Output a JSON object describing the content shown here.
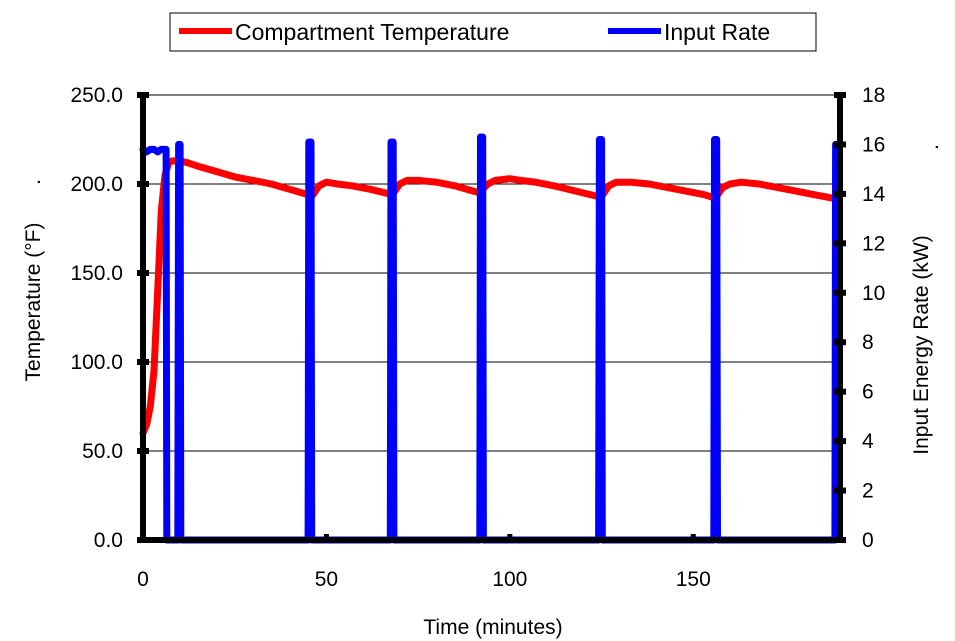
{
  "chart_data": {
    "type": "line",
    "x_axis": {
      "label": "Time (minutes)",
      "range": [
        0,
        190
      ],
      "ticks": [
        0,
        50,
        100,
        150
      ],
      "tick_labels": [
        "0",
        "50",
        "100",
        "150"
      ]
    },
    "y_axis_left": {
      "label": "Temperature (°F)",
      "suffix": ".",
      "range": [
        0,
        250
      ],
      "ticks": [
        0,
        50,
        100,
        150,
        200,
        250
      ],
      "tick_labels": [
        "0.0",
        "50.0",
        "100.0",
        "150.0",
        "200.0",
        "250.0"
      ]
    },
    "y_axis_right": {
      "label": "Input Energy Rate (kW)",
      "suffix": ".",
      "range": [
        0,
        18
      ],
      "ticks": [
        0,
        2,
        4,
        6,
        8,
        10,
        12,
        14,
        16,
        18
      ],
      "tick_labels": [
        "0",
        "2",
        "4",
        "6",
        "8",
        "10",
        "12",
        "14",
        "16",
        "18"
      ]
    },
    "grid": "horizontal",
    "legend_position": "top-center",
    "series": [
      {
        "name": "Compartment Temperature",
        "color": "#ff0000",
        "axis": "left",
        "points": [
          [
            0,
            60
          ],
          [
            1,
            65
          ],
          [
            2,
            75
          ],
          [
            3,
            95
          ],
          [
            4,
            140
          ],
          [
            5,
            185
          ],
          [
            6,
            205
          ],
          [
            7,
            212
          ],
          [
            8,
            213
          ],
          [
            10,
            213
          ],
          [
            12,
            212
          ],
          [
            15,
            210
          ],
          [
            20,
            207
          ],
          [
            25,
            204
          ],
          [
            30,
            202
          ],
          [
            35,
            200
          ],
          [
            40,
            197
          ],
          [
            45,
            194
          ],
          [
            46,
            193
          ],
          [
            47,
            196
          ],
          [
            48,
            199
          ],
          [
            50,
            201
          ],
          [
            53,
            200
          ],
          [
            57,
            199
          ],
          [
            62,
            197
          ],
          [
            66,
            195
          ],
          [
            68,
            194
          ],
          [
            69,
            197
          ],
          [
            70,
            200
          ],
          [
            72,
            202
          ],
          [
            75,
            202
          ],
          [
            80,
            201
          ],
          [
            85,
            199
          ],
          [
            90,
            196
          ],
          [
            92,
            195
          ],
          [
            93,
            198
          ],
          [
            94,
            200
          ],
          [
            96,
            202
          ],
          [
            100,
            203
          ],
          [
            103,
            202
          ],
          [
            107,
            201
          ],
          [
            112,
            199
          ],
          [
            118,
            196
          ],
          [
            124,
            193
          ],
          [
            125,
            193
          ],
          [
            126,
            196
          ],
          [
            127,
            199
          ],
          [
            129,
            201
          ],
          [
            133,
            201
          ],
          [
            138,
            200
          ],
          [
            143,
            198
          ],
          [
            148,
            196
          ],
          [
            153,
            194
          ],
          [
            156,
            192
          ],
          [
            157,
            195
          ],
          [
            158,
            198
          ],
          [
            160,
            200
          ],
          [
            163,
            201
          ],
          [
            168,
            200
          ],
          [
            173,
            198
          ],
          [
            178,
            196
          ],
          [
            183,
            194
          ],
          [
            188,
            192
          ],
          [
            189,
            191
          ]
        ]
      },
      {
        "name": "Input Rate",
        "color": "#0000ff",
        "axis": "right",
        "points": [
          [
            0,
            15.8
          ],
          [
            1,
            15.7
          ],
          [
            2,
            15.8
          ],
          [
            3,
            15.8
          ],
          [
            4,
            15.7
          ],
          [
            5,
            15.8
          ],
          [
            6,
            15.8
          ],
          [
            6.3,
            15.8
          ],
          [
            6.5,
            0
          ],
          [
            9.5,
            0
          ],
          [
            9.7,
            16.0
          ],
          [
            10.1,
            16.0
          ],
          [
            10.3,
            0
          ],
          [
            45,
            0
          ],
          [
            45.2,
            16.1
          ],
          [
            45.8,
            16.1
          ],
          [
            46,
            0
          ],
          [
            67.4,
            0
          ],
          [
            67.6,
            16.1
          ],
          [
            68.2,
            16.1
          ],
          [
            68.4,
            0
          ],
          [
            91.8,
            0
          ],
          [
            92,
            16.3
          ],
          [
            92.6,
            16.3
          ],
          [
            92.8,
            0
          ],
          [
            124.2,
            0
          ],
          [
            124.4,
            16.2
          ],
          [
            125,
            16.2
          ],
          [
            125.2,
            0
          ],
          [
            155.6,
            0
          ],
          [
            155.8,
            16.2
          ],
          [
            156.4,
            16.2
          ],
          [
            156.6,
            0
          ],
          [
            188.6,
            0
          ],
          [
            188.8,
            16.0
          ],
          [
            189.4,
            16.0
          ]
        ]
      }
    ]
  }
}
